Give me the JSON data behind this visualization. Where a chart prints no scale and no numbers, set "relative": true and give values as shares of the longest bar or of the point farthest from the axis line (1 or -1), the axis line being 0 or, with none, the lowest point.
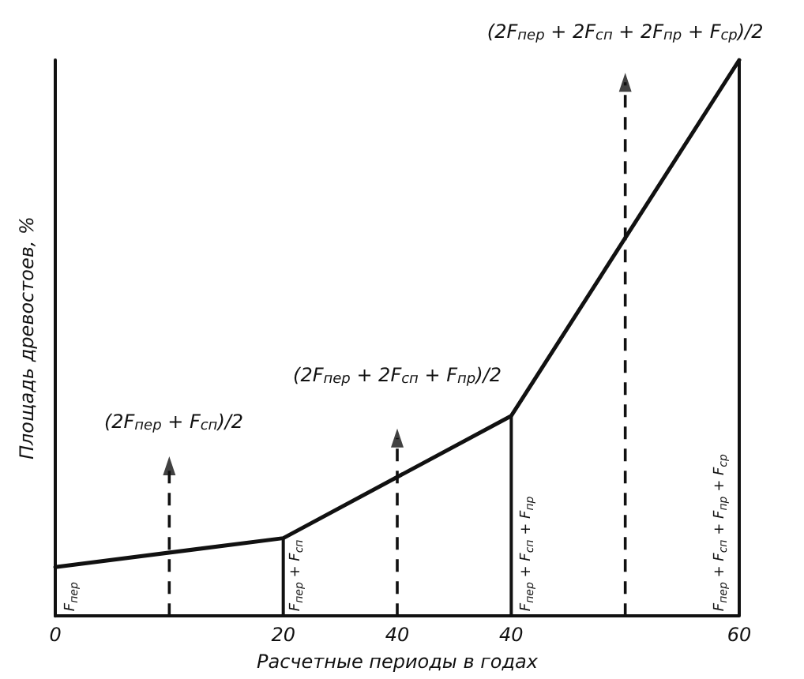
{
  "chart_data": {
    "type": "line",
    "relative": true,
    "xlabel": "Расчетные периоды в годах",
    "ylabel": "Площадь древостоев, %",
    "categories": [
      "0",
      null,
      "20",
      "40",
      "40",
      null,
      "60"
    ],
    "series": [
      {
        "color": "#111111",
        "values": [
          0.088,
          null,
          0.14,
          null,
          0.36,
          null,
          1
        ]
      },
      {
        "type": "lollipop",
        "color": "#111111",
        "line_style": "dashed",
        "marker": "triangle",
        "values": [
          null,
          0.27,
          null,
          0.32,
          null,
          0.96,
          null
        ]
      },
      {
        "type": "bar",
        "color": "#111111",
        "values": [
          null,
          null,
          0.14,
          null,
          0.36,
          null,
          1
        ]
      }
    ],
    "annotations": [
      "F$_{пер}$",
      "(2F$_{пер}$ + F$_{сп}$)/2",
      "F$_{пер}$ + F$_{сп}$",
      "(2F$_{пер}$ + 2F$_{сп}$ + F$_{пр}$)/2",
      "F$_{пер}$ + F$_{сп}$ + F$_{пр}$",
      "(2F$_{пер}$ + 2F$_{сп}$ + 2F$_{пр}$ + F$_{ср}$)/2",
      "F$_{пер}$ + F$_{сп}$ + F$_{пр}$ + F$_{ср}$"
    ],
    "marker": "none"
  }
}
